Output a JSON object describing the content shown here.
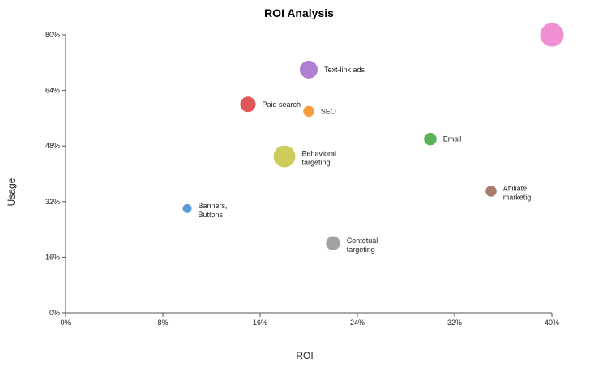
{
  "chart_data": {
    "type": "scatter",
    "title": "ROI Analysis",
    "xlabel": "ROI",
    "ylabel": "Usage",
    "xlim": [
      0,
      40
    ],
    "ylim": [
      0,
      80
    ],
    "x_ticks": [
      0,
      8,
      16,
      24,
      32,
      40
    ],
    "y_ticks": [
      0,
      16,
      32,
      48,
      64,
      80
    ],
    "tick_suffix": "%",
    "grid": false,
    "legend": "none",
    "points": [
      {
        "label": [
          "Banners,",
          "Buttons"
        ],
        "x": 10,
        "y": 30,
        "size": 1,
        "color": "#5b9bd5"
      },
      {
        "label": [
          "Paid search"
        ],
        "x": 15,
        "y": 60,
        "size": 3,
        "color": "#e15759"
      },
      {
        "label": [
          "Behavioral",
          "targeting"
        ],
        "x": 18,
        "y": 45,
        "size": 6,
        "color": "#cdcc5d"
      },
      {
        "label": [
          "Text-link ads"
        ],
        "x": 20,
        "y": 70,
        "size": 4,
        "color": "#af7fd0"
      },
      {
        "label": [
          "SEO"
        ],
        "x": 20,
        "y": 58,
        "size": 1.5,
        "color": "#f99d3e"
      },
      {
        "label": [
          "Contetual",
          "targeting"
        ],
        "x": 22,
        "y": 20,
        "size": 2.5,
        "color": "#a2a2a2"
      },
      {
        "label": [
          "Email"
        ],
        "x": 30,
        "y": 50,
        "size": 2,
        "color": "#59b35b"
      },
      {
        "label": [
          "Affiliate",
          "marketig"
        ],
        "x": 35,
        "y": 35,
        "size": 1.5,
        "color": "#a87b6d"
      },
      {
        "label": [],
        "x": 40,
        "y": 80,
        "size": 7,
        "color": "#ee90d2"
      }
    ]
  }
}
